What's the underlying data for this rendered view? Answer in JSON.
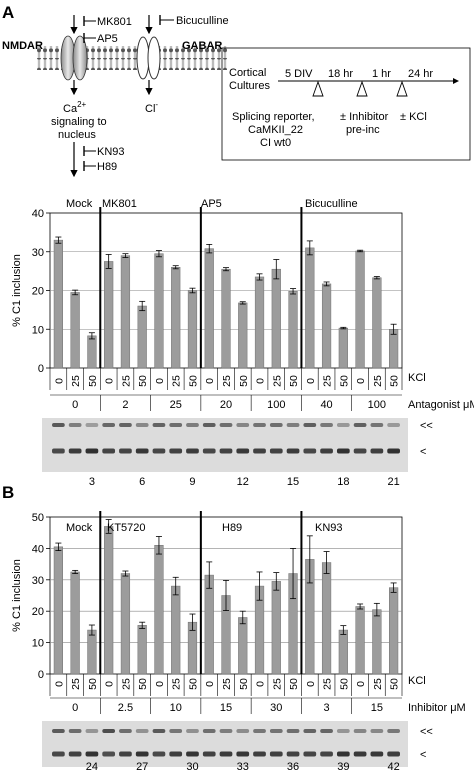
{
  "panels": [
    {
      "letter": "A",
      "diagram": {
        "receptor_left": "NMDAR",
        "receptor_right": "GABAR",
        "inhibitors_top": [
          "MK801",
          "AP5"
        ],
        "inhibitor_right": "Bicuculline",
        "ion_left": "Ca",
        "ion_left_charge": "2+",
        "signal_lines": [
          "signaling to",
          "nucleus"
        ],
        "ion_right": "Cl",
        "ion_right_charge": "-",
        "inhibitors_bottom": [
          "KN93",
          "H89"
        ]
      },
      "timeline": {
        "start_lines": [
          "Cortical",
          "Cultures"
        ],
        "intervals": [
          "5 DIV",
          "18 hr",
          "1 hr",
          "24 hr"
        ],
        "events": [
          [
            "Splicing reporter,",
            "CaMKII_22",
            "CI wt0"
          ],
          [
            "± Inhibitor",
            "pre-inc"
          ],
          [
            "± KCl"
          ]
        ]
      }
    },
    {
      "letter": "B"
    }
  ],
  "chart_data": [
    {
      "type": "bar",
      "ylabel": "% C1 inclusion",
      "ylim": [
        0,
        40
      ],
      "yticks": [
        0,
        10,
        20,
        30,
        40
      ],
      "grid": true,
      "groups": [
        "Mock",
        "MK801",
        "AP5",
        "Bicuculline"
      ],
      "categories": [
        "0",
        "25",
        "50",
        "0",
        "25",
        "50",
        "0",
        "25",
        "50",
        "0",
        "25",
        "50",
        "0",
        "25",
        "50",
        "0",
        "25",
        "50",
        "0",
        "25",
        "50"
      ],
      "values": [
        33,
        19.5,
        8.3,
        27.5,
        29,
        16,
        29.5,
        26,
        20,
        30.8,
        25.5,
        16.8,
        23.5,
        25.5,
        19.8,
        31,
        21.7,
        10.3,
        30.2,
        23.3,
        10
      ],
      "errors": [
        0.8,
        0.6,
        0.8,
        1.8,
        0.5,
        1.2,
        0.8,
        0.4,
        0.6,
        1.1,
        0.4,
        0.3,
        0.8,
        2.5,
        0.7,
        1.8,
        0.5,
        0.2,
        0.2,
        0.3,
        1.3
      ],
      "row_labels": [
        "KCl",
        "Antagonist μM"
      ],
      "concentrations": [
        "0",
        "2",
        "25",
        "20",
        "100",
        "40",
        "100"
      ],
      "lane_numbers": [
        "3",
        "6",
        "9",
        "12",
        "15",
        "18",
        "21"
      ],
      "band_markers": [
        "<<",
        "<"
      ]
    },
    {
      "type": "bar",
      "ylabel": "% C1 inclusion",
      "ylim": [
        0,
        50
      ],
      "yticks": [
        0,
        10,
        20,
        30,
        40,
        50
      ],
      "grid": true,
      "groups": [
        "Mock",
        "KT5720",
        "H89",
        "KN93"
      ],
      "categories": [
        "0",
        "25",
        "50",
        "0",
        "25",
        "50",
        "0",
        "25",
        "50",
        "0",
        "25",
        "50",
        "0",
        "25",
        "50",
        "0",
        "25",
        "50",
        "0",
        "25",
        "50"
      ],
      "values": [
        40.5,
        32.5,
        14,
        47,
        32,
        15.5,
        41,
        28,
        16.5,
        31.5,
        25,
        18,
        28,
        29.5,
        32,
        36.5,
        35.5,
        14,
        21.5,
        20.5,
        27.5
      ],
      "errors": [
        1.2,
        0.5,
        1.6,
        2.2,
        0.8,
        1,
        2.8,
        2.8,
        2.6,
        4.2,
        4.8,
        2,
        4.5,
        2.8,
        8,
        7.5,
        3.5,
        1.4,
        0.8,
        2,
        1.5
      ],
      "row_labels": [
        "KCl",
        "Inhibitor μM"
      ],
      "concentrations": [
        "0",
        "2.5",
        "10",
        "15",
        "30",
        "3",
        "15"
      ],
      "lane_numbers": [
        "24",
        "27",
        "30",
        "33",
        "36",
        "39",
        "42"
      ],
      "band_markers": [
        "<<",
        "<"
      ]
    }
  ]
}
